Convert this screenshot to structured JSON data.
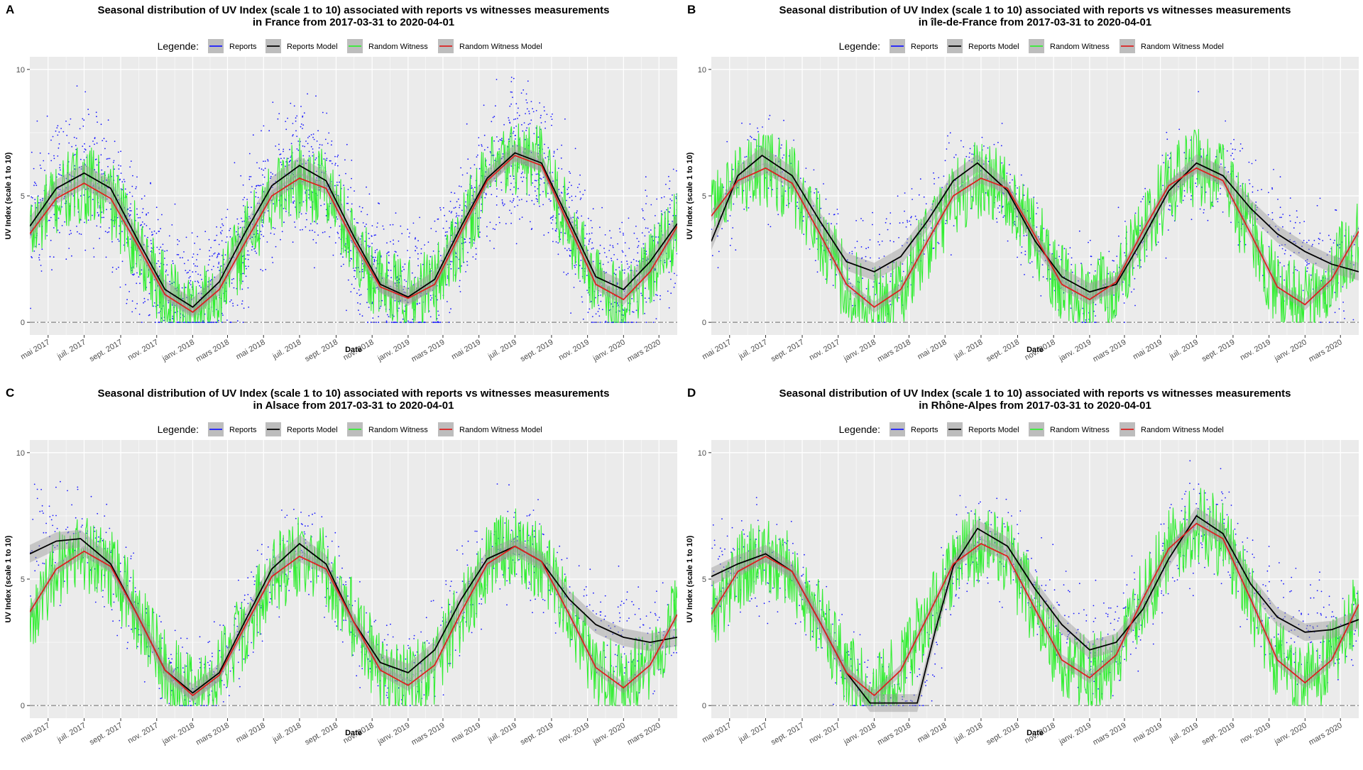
{
  "shared": {
    "legend_title": "Legende:",
    "legend_items": [
      {
        "label": "Reports",
        "color": "#1a1aff"
      },
      {
        "label": "Reports Model",
        "color": "#000000"
      },
      {
        "label": "Random Witness",
        "color": "#33ee33"
      },
      {
        "label": "Random Witness Model",
        "color": "#dd2020"
      }
    ],
    "xlabel": "Date",
    "ylabel": "UV Index (scale 1 to 10)",
    "y_ticks": [
      "0",
      "5",
      "10"
    ],
    "x_ticks": [
      "mai 2017",
      "juil. 2017",
      "sept. 2017",
      "nov. 2017",
      "janv. 2018",
      "mars 2018",
      "mai 2018",
      "juil. 2018",
      "sept. 2018",
      "nov. 2018",
      "janv. 2019",
      "mars 2019",
      "mai 2019",
      "juil. 2019",
      "sept. 2019",
      "nov. 2019",
      "janv. 2020",
      "mars 2020"
    ],
    "panel_bg": "#ebebeb"
  },
  "chart_data": [
    {
      "panel_letter": "A",
      "type": "line",
      "title_line1": "Seasonal distribution of  UV Index (scale 1 to 10)  associated with reports vs witnesses measurements",
      "title_line2": "in  France  from 2017-03-31 to 2020-04-01",
      "xlabel": "Date",
      "ylabel": "UV Index (scale 1 to 10)",
      "xlim": [
        "2017-03-31",
        "2020-04-01"
      ],
      "ylim": [
        -0.5,
        10.5
      ],
      "series": [
        {
          "name": "Reports Model",
          "color": "#000000",
          "points": [
            [
              "2017-03-31",
              3.8
            ],
            [
              "2017-05-15",
              5.3
            ],
            [
              "2017-07-01",
              5.9
            ],
            [
              "2017-08-15",
              5.3
            ],
            [
              "2017-10-01",
              3.2
            ],
            [
              "2017-11-15",
              1.3
            ],
            [
              "2018-01-01",
              0.6
            ],
            [
              "2018-02-15",
              1.6
            ],
            [
              "2018-04-01",
              3.6
            ],
            [
              "2018-05-15",
              5.4
            ],
            [
              "2018-07-01",
              6.2
            ],
            [
              "2018-08-15",
              5.6
            ],
            [
              "2018-10-01",
              3.4
            ],
            [
              "2018-11-15",
              1.5
            ],
            [
              "2019-01-01",
              1.0
            ],
            [
              "2019-02-15",
              1.7
            ],
            [
              "2019-04-01",
              3.8
            ],
            [
              "2019-05-15",
              5.7
            ],
            [
              "2019-07-01",
              6.7
            ],
            [
              "2019-08-15",
              6.3
            ],
            [
              "2019-10-01",
              4.0
            ],
            [
              "2019-11-15",
              1.8
            ],
            [
              "2020-01-01",
              1.3
            ],
            [
              "2020-02-15",
              2.4
            ],
            [
              "2020-04-01",
              3.9
            ]
          ]
        },
        {
          "name": "Random Witness Model",
          "color": "#dd2020",
          "points": [
            [
              "2017-03-31",
              3.5
            ],
            [
              "2017-05-15",
              4.9
            ],
            [
              "2017-07-01",
              5.5
            ],
            [
              "2017-08-15",
              4.9
            ],
            [
              "2017-10-01",
              3.0
            ],
            [
              "2017-11-15",
              1.1
            ],
            [
              "2018-01-01",
              0.4
            ],
            [
              "2018-02-15",
              1.3
            ],
            [
              "2018-04-01",
              3.2
            ],
            [
              "2018-05-15",
              5.0
            ],
            [
              "2018-07-01",
              5.7
            ],
            [
              "2018-08-15",
              5.3
            ],
            [
              "2018-10-01",
              3.2
            ],
            [
              "2018-11-15",
              1.4
            ],
            [
              "2019-01-01",
              0.95
            ],
            [
              "2019-02-15",
              1.5
            ],
            [
              "2019-04-01",
              3.6
            ],
            [
              "2019-05-15",
              5.6
            ],
            [
              "2019-07-01",
              6.6
            ],
            [
              "2019-08-15",
              6.2
            ],
            [
              "2019-10-01",
              3.8
            ],
            [
              "2019-11-15",
              1.5
            ],
            [
              "2020-01-01",
              0.9
            ],
            [
              "2020-02-15",
              2.0
            ],
            [
              "2020-04-01",
              3.8
            ]
          ]
        }
      ]
    },
    {
      "panel_letter": "B",
      "type": "line",
      "title_line1": "Seasonal distribution of  UV Index (scale 1 to 10)  associated with reports vs witnesses measurements",
      "title_line2": "in  île-de-France  from 2017-03-31 to 2020-04-01",
      "xlabel": "Date",
      "ylabel": "UV Index (scale 1 to 10)",
      "xlim": [
        "2017-03-31",
        "2020-04-01"
      ],
      "ylim": [
        -0.5,
        10.5
      ],
      "series": [
        {
          "name": "Reports Model",
          "color": "#000000",
          "points": [
            [
              "2017-03-31",
              3.2
            ],
            [
              "2017-05-15",
              5.8
            ],
            [
              "2017-06-25",
              6.6
            ],
            [
              "2017-08-15",
              5.8
            ],
            [
              "2017-10-01",
              4.0
            ],
            [
              "2017-11-15",
              2.4
            ],
            [
              "2018-01-01",
              2.0
            ],
            [
              "2018-02-15",
              2.6
            ],
            [
              "2018-04-01",
              4.0
            ],
            [
              "2018-05-15",
              5.6
            ],
            [
              "2018-06-25",
              6.3
            ],
            [
              "2018-08-15",
              5.2
            ],
            [
              "2018-10-01",
              3.2
            ],
            [
              "2018-11-15",
              1.8
            ],
            [
              "2019-01-01",
              1.2
            ],
            [
              "2019-02-15",
              1.5
            ],
            [
              "2019-04-01",
              3.3
            ],
            [
              "2019-05-15",
              5.2
            ],
            [
              "2019-07-01",
              6.3
            ],
            [
              "2019-08-15",
              5.8
            ],
            [
              "2019-10-01",
              4.5
            ],
            [
              "2019-11-15",
              3.5
            ],
            [
              "2020-01-01",
              2.8
            ],
            [
              "2020-02-15",
              2.3
            ],
            [
              "2020-04-01",
              2.0
            ]
          ]
        },
        {
          "name": "Random Witness Model",
          "color": "#dd2020",
          "points": [
            [
              "2017-03-31",
              4.2
            ],
            [
              "2017-05-15",
              5.6
            ],
            [
              "2017-07-01",
              6.1
            ],
            [
              "2017-08-15",
              5.5
            ],
            [
              "2017-10-01",
              3.5
            ],
            [
              "2017-11-15",
              1.5
            ],
            [
              "2018-01-01",
              0.6
            ],
            [
              "2018-02-15",
              1.3
            ],
            [
              "2018-04-01",
              3.2
            ],
            [
              "2018-05-15",
              5.0
            ],
            [
              "2018-07-01",
              5.7
            ],
            [
              "2018-08-15",
              5.3
            ],
            [
              "2018-10-01",
              3.4
            ],
            [
              "2018-11-15",
              1.5
            ],
            [
              "2019-01-01",
              0.9
            ],
            [
              "2019-02-15",
              1.6
            ],
            [
              "2019-04-01",
              3.6
            ],
            [
              "2019-05-15",
              5.4
            ],
            [
              "2019-07-01",
              6.1
            ],
            [
              "2019-08-15",
              5.6
            ],
            [
              "2019-10-01",
              3.5
            ],
            [
              "2019-11-15",
              1.4
            ],
            [
              "2020-01-01",
              0.7
            ],
            [
              "2020-02-15",
              1.7
            ],
            [
              "2020-04-01",
              3.6
            ]
          ]
        }
      ]
    },
    {
      "panel_letter": "C",
      "type": "line",
      "title_line1": "Seasonal distribution of  UV Index (scale 1 to 10)  associated with reports vs witnesses measurements",
      "title_line2": "in  Alsace  from 2017-03-31 to 2020-04-01",
      "xlabel": "Date",
      "ylabel": "UV Index (scale 1 to 10)",
      "xlim": [
        "2017-03-31",
        "2020-04-01"
      ],
      "ylim": [
        -0.5,
        10.5
      ],
      "series": [
        {
          "name": "Reports Model",
          "color": "#000000",
          "points": [
            [
              "2017-03-31",
              6.0
            ],
            [
              "2017-05-15",
              6.5
            ],
            [
              "2017-06-25",
              6.6
            ],
            [
              "2017-08-15",
              5.6
            ],
            [
              "2017-10-01",
              3.5
            ],
            [
              "2017-11-15",
              1.4
            ],
            [
              "2018-01-01",
              0.5
            ],
            [
              "2018-02-15",
              1.3
            ],
            [
              "2018-04-01",
              3.4
            ],
            [
              "2018-05-15",
              5.4
            ],
            [
              "2018-07-01",
              6.4
            ],
            [
              "2018-08-15",
              5.6
            ],
            [
              "2018-10-01",
              3.3
            ],
            [
              "2018-11-15",
              1.7
            ],
            [
              "2019-01-01",
              1.3
            ],
            [
              "2019-02-15",
              2.2
            ],
            [
              "2019-04-01",
              4.2
            ],
            [
              "2019-05-15",
              5.8
            ],
            [
              "2019-07-01",
              6.3
            ],
            [
              "2019-08-15",
              5.7
            ],
            [
              "2019-10-01",
              4.2
            ],
            [
              "2019-11-15",
              3.2
            ],
            [
              "2020-01-01",
              2.7
            ],
            [
              "2020-02-15",
              2.5
            ],
            [
              "2020-04-01",
              2.7
            ]
          ]
        },
        {
          "name": "Random Witness Model",
          "color": "#dd2020",
          "points": [
            [
              "2017-03-31",
              3.7
            ],
            [
              "2017-05-15",
              5.4
            ],
            [
              "2017-07-01",
              6.1
            ],
            [
              "2017-08-15",
              5.5
            ],
            [
              "2017-10-01",
              3.5
            ],
            [
              "2017-11-15",
              1.4
            ],
            [
              "2018-01-01",
              0.4
            ],
            [
              "2018-02-15",
              1.2
            ],
            [
              "2018-04-01",
              3.2
            ],
            [
              "2018-05-15",
              5.1
            ],
            [
              "2018-07-01",
              5.9
            ],
            [
              "2018-08-15",
              5.4
            ],
            [
              "2018-10-01",
              3.3
            ],
            [
              "2018-11-15",
              1.4
            ],
            [
              "2019-01-01",
              0.8
            ],
            [
              "2019-02-15",
              1.6
            ],
            [
              "2019-04-01",
              3.7
            ],
            [
              "2019-05-15",
              5.6
            ],
            [
              "2019-07-01",
              6.3
            ],
            [
              "2019-08-15",
              5.7
            ],
            [
              "2019-10-01",
              3.6
            ],
            [
              "2019-11-15",
              1.5
            ],
            [
              "2020-01-01",
              0.7
            ],
            [
              "2020-02-15",
              1.6
            ],
            [
              "2020-04-01",
              3.6
            ]
          ]
        }
      ]
    },
    {
      "panel_letter": "D",
      "type": "line",
      "title_line1": "Seasonal distribution of  UV Index (scale 1 to 10)  associated with reports vs witnesses measurements",
      "title_line2": "in  Rhône-Alpes  from 2017-03-31 to 2020-04-01",
      "xlabel": "Date",
      "ylabel": "UV Index (scale 1 to 10)",
      "xlim": [
        "2017-03-31",
        "2020-04-01"
      ],
      "ylim": [
        -0.5,
        10.5
      ],
      "series": [
        {
          "name": "Reports Model",
          "color": "#000000",
          "points": [
            [
              "2017-03-31",
              5.1
            ],
            [
              "2017-05-15",
              5.6
            ],
            [
              "2017-07-01",
              6.0
            ],
            [
              "2017-08-15",
              5.3
            ],
            [
              "2017-10-01",
              3.3
            ],
            [
              "2017-11-15",
              1.3
            ],
            [
              "2017-12-25",
              0.1
            ],
            [
              "2018-03-15",
              0.1
            ],
            [
              "2018-04-15",
              3.0
            ],
            [
              "2018-05-15",
              5.5
            ],
            [
              "2018-06-25",
              7.0
            ],
            [
              "2018-08-15",
              6.3
            ],
            [
              "2018-10-01",
              4.6
            ],
            [
              "2018-11-15",
              3.2
            ],
            [
              "2019-01-01",
              2.2
            ],
            [
              "2019-02-15",
              2.5
            ],
            [
              "2019-04-01",
              3.8
            ],
            [
              "2019-05-15",
              5.8
            ],
            [
              "2019-07-01",
              7.5
            ],
            [
              "2019-08-15",
              6.8
            ],
            [
              "2019-10-01",
              4.8
            ],
            [
              "2019-11-15",
              3.5
            ],
            [
              "2020-01-01",
              2.9
            ],
            [
              "2020-02-15",
              3.0
            ],
            [
              "2020-04-01",
              3.4
            ]
          ]
        },
        {
          "name": "Random Witness Model",
          "color": "#dd2020",
          "points": [
            [
              "2017-03-31",
              3.6
            ],
            [
              "2017-05-15",
              5.3
            ],
            [
              "2017-07-01",
              5.9
            ],
            [
              "2017-08-15",
              5.3
            ],
            [
              "2017-10-01",
              3.3
            ],
            [
              "2017-11-15",
              1.3
            ],
            [
              "2018-01-01",
              0.4
            ],
            [
              "2018-02-15",
              1.4
            ],
            [
              "2018-04-01",
              3.5
            ],
            [
              "2018-05-15",
              5.6
            ],
            [
              "2018-07-01",
              6.4
            ],
            [
              "2018-08-15",
              5.9
            ],
            [
              "2018-10-01",
              3.8
            ],
            [
              "2018-11-15",
              1.8
            ],
            [
              "2019-01-01",
              1.1
            ],
            [
              "2019-02-15",
              2.0
            ],
            [
              "2019-04-01",
              4.2
            ],
            [
              "2019-05-15",
              6.2
            ],
            [
              "2019-07-01",
              7.2
            ],
            [
              "2019-08-15",
              6.6
            ],
            [
              "2019-10-01",
              4.2
            ],
            [
              "2019-11-15",
              1.8
            ],
            [
              "2020-01-01",
              0.9
            ],
            [
              "2020-02-15",
              1.8
            ],
            [
              "2020-04-01",
              4.0
            ]
          ]
        }
      ]
    }
  ]
}
